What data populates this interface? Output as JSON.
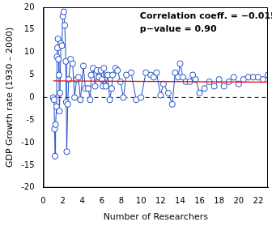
{
  "chart_data": {
    "type": "scatter",
    "x_label": "Number of Researchers",
    "y_label": "GDP Growth rate (1930 – 2000)",
    "annotations": [
      "Correlation coeff. = −0.015",
      "p−value = 0.90"
    ],
    "xlim": [
      0,
      23
    ],
    "xticks": [
      0,
      2,
      4,
      6,
      8,
      10,
      12,
      14,
      16,
      18,
      20,
      22
    ],
    "ylim": [
      -20,
      20
    ],
    "yticks": [
      -20,
      -15,
      -10,
      -5,
      0,
      5,
      10,
      15,
      20
    ],
    "grid": false,
    "hlines": [
      {
        "y": 0,
        "color": "#000000",
        "line_style": "dashed"
      }
    ],
    "series": [
      {
        "color": "#1f4fc8",
        "marker": "circle",
        "line_style": "solid",
        "x": [
          1.0,
          1.1,
          1.15,
          1.2,
          1.25,
          1.35,
          1.4,
          1.45,
          1.5,
          1.55,
          1.6,
          1.65,
          1.7,
          1.8,
          1.9,
          2.0,
          2.1,
          2.2,
          2.3,
          2.35,
          2.4,
          2.5,
          2.6,
          2.8,
          3.0,
          3.2,
          3.4,
          3.6,
          3.8,
          4.1,
          4.3,
          4.6,
          4.8,
          4.9,
          5.1,
          5.3,
          5.5,
          5.7,
          5.9,
          6.0,
          6.1,
          6.2,
          6.4,
          6.6,
          6.8,
          7.0,
          7.1,
          7.4,
          7.6,
          7.9,
          8.2,
          8.5,
          9.0,
          9.5,
          10.0,
          10.5,
          11.0,
          11.3,
          11.6,
          12.0,
          12.3,
          12.8,
          13.2,
          13.5,
          13.8,
          14.0,
          14.3,
          14.6,
          15.0,
          15.3,
          15.6,
          16.0,
          16.5,
          17.0,
          17.5,
          18.0,
          18.5,
          19.0,
          19.5,
          20.0,
          20.5,
          21.0,
          21.5,
          22.0,
          22.5,
          23.0
        ],
        "values": [
          0,
          -0.5,
          -7,
          -13,
          -6,
          -2,
          9,
          11,
          13,
          8.5,
          5,
          -3,
          1,
          12,
          11.5,
          18,
          19,
          16,
          8,
          -1,
          -12,
          -1.5,
          4,
          8.5,
          7.5,
          0,
          4,
          4.5,
          -0.5,
          7,
          2,
          2,
          -0.5,
          5,
          6.5,
          2.5,
          6,
          4.5,
          6,
          4,
          2.5,
          6.5,
          2.5,
          5,
          -0.5,
          2,
          5,
          6.5,
          6,
          3.5,
          0,
          5,
          5.5,
          -0.5,
          0,
          5.5,
          5,
          4.5,
          5.5,
          0.5,
          3,
          1,
          -1.5,
          5.5,
          4.5,
          7.5,
          4.5,
          3.5,
          3.5,
          5,
          4,
          1,
          2,
          3.5,
          2.5,
          4,
          2.5,
          3.5,
          4.5,
          3,
          4,
          4.5,
          4.5,
          4.5,
          4,
          5
        ]
      },
      {
        "color": "#ff0000",
        "marker": "none",
        "line_style": "solid",
        "x": [
          1.0,
          23.0
        ],
        "values": [
          3.7,
          3.4
        ]
      }
    ]
  }
}
